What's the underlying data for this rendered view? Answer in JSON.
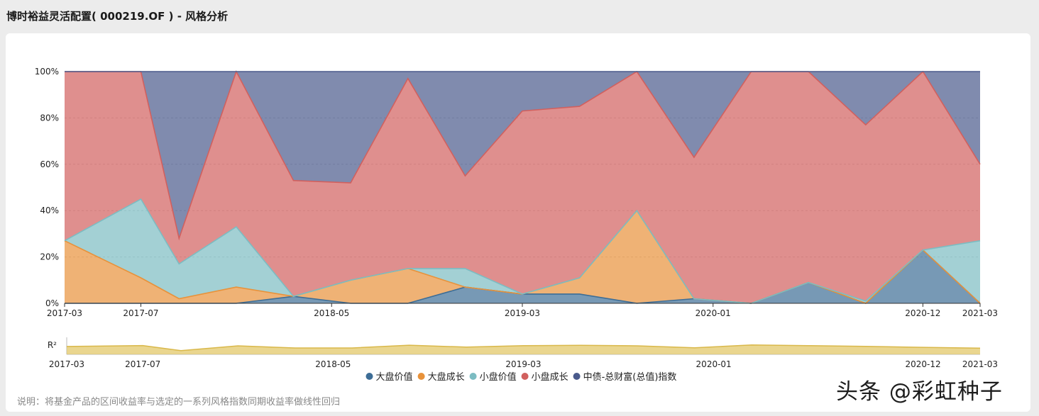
{
  "header": {
    "title": "博时裕益灵活配置( 000219.OF ) - 风格分析"
  },
  "note": "说明：将基金产品的区间收益率与选定的一系列风格指数同期收益率做线性回归",
  "watermark": "头条 @彩虹种子",
  "r2_label": "R²",
  "colors": {
    "large_value": "#3d6d96",
    "large_growth": "#e8923a",
    "small_value": "#7cbcc2",
    "small_growth": "#d1605e",
    "bond": "#4a5a8c",
    "r2": "#e3c86a"
  },
  "chart_data": {
    "type": "area",
    "stacked": true,
    "ylim": [
      0,
      100
    ],
    "yticks": [
      "0%",
      "20%",
      "40%",
      "60%",
      "80%",
      "100%"
    ],
    "x_start": "2017-03",
    "x_end": "2021-03",
    "x": [
      "2017-03",
      "2017-07",
      "2017-09",
      "2017-12",
      "2018-03",
      "2018-06",
      "2018-09",
      "2018-12",
      "2019-03",
      "2019-06",
      "2019-09",
      "2019-12",
      "2020-03",
      "2020-06",
      "2020-09",
      "2020-12",
      "2021-03"
    ],
    "xtick_labels": [
      "2017-03",
      "2017-07",
      "2018-05",
      "2019-03",
      "2020-01",
      "2020-12",
      "2021-03"
    ],
    "grid": true,
    "legend_position": "bottom-center",
    "series": [
      {
        "name": "大盘价值",
        "color_key": "large_value",
        "values": [
          0,
          0,
          0,
          0,
          3,
          0,
          0,
          7,
          4,
          4,
          0,
          2,
          0,
          9,
          0,
          23,
          0
        ]
      },
      {
        "name": "大盘成长",
        "color_key": "large_growth",
        "values": [
          27,
          11,
          2,
          7,
          0,
          10,
          15,
          0,
          0,
          7,
          40,
          0,
          0,
          0,
          0,
          0,
          0
        ]
      },
      {
        "name": "小盘价值",
        "color_key": "small_value",
        "values": [
          0,
          34,
          15,
          26,
          0,
          0,
          0,
          8,
          0,
          0,
          0,
          0,
          0,
          0,
          1,
          0,
          27
        ]
      },
      {
        "name": "小盘成长",
        "color_key": "small_growth",
        "values": [
          73,
          55,
          11,
          67,
          50,
          42,
          82,
          40,
          79,
          74,
          60,
          61,
          100,
          91,
          76,
          77,
          33
        ]
      },
      {
        "name": "中债-总财富(总值)指数",
        "color_key": "bond",
        "values": [
          0,
          0,
          72,
          0,
          47,
          48,
          3,
          45,
          17,
          15,
          0,
          37,
          0,
          0,
          23,
          0,
          40
        ]
      }
    ],
    "r2": {
      "label": "R²",
      "values": [
        0.74,
        0.83,
        0.35,
        0.8,
        0.6,
        0.6,
        0.86,
        0.68,
        0.82,
        0.85,
        0.8,
        0.62,
        0.88,
        0.82,
        0.75,
        0.66,
        0.58
      ],
      "ylim": [
        0,
        1.6
      ]
    }
  }
}
